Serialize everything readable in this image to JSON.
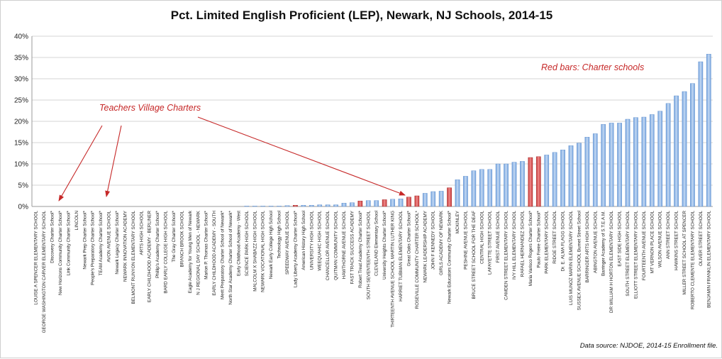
{
  "chart_data": {
    "type": "bar",
    "title": "Pct. Limited English Proficient (LEP), Newark, NJ Schools, 2014-15",
    "xlabel": "",
    "ylabel": "",
    "ylim": [
      0,
      0.4
    ],
    "y_ticks": [
      "0%",
      "5%",
      "10%",
      "15%",
      "20%",
      "25%",
      "30%",
      "35%",
      "40%"
    ],
    "grid": true,
    "legend": "none",
    "colors": {
      "district": "#8fb4e3",
      "charter": "#d84b4b"
    },
    "categories": [
      "LOUISE A SPENCER ELEMENTARY SCHOOL",
      "GEORGE WASHINGTON CARVER ELEMENTARY SCHOOL",
      "Discovery Charter School*",
      "New Horizons Community Charter School*",
      "Link Community Charter School*",
      "LINCOLN",
      "Newark Prep Charter School*",
      "People's Preparatory Charter School*",
      "TEAM Academy Charter School*",
      "AVON AVENUE SCHOOL",
      "Newark Legacy Charter School*",
      "NEWARK INNOVATION ACADEMY",
      "BELMONT RUNYON ELEMENTARY SCHOOL",
      "ARTS HIGH SCHOOL",
      "EARLY CHILDHOOD ACADEMY - BERLINER",
      "Phillip's Academy Charter School*",
      "BARD EARLY COLLEGE HIGH SCHOOL",
      "The Gray Charter School*",
      "BRANCH BROOK SCHOOL",
      "Eagle Academy for Young Men of Newark",
      "N J REGIONAL DAY SCHOOL - NEWARK",
      "Marion P. Thomas Charter School*",
      "EARLY CHILDHOOD ACADEMY - SOUTH",
      "Merit Preparatory Charter School of Newark*",
      "North Star Academy Charter School of Newark*",
      "Early Childhood Academy - West",
      "SCIENCE PARK HIGH SCHOOL",
      "MALCOLM X SHABAZZ HIGH SCHOOL",
      "NEWARK VOCATIONAL HIGH SCHOOL",
      "Newark Early College High School",
      "Technology High School",
      "SPEEDWAY AVENUE SCHOOL",
      "Lady Liberty Academy Charter School*",
      "American History High School",
      "UNIVERSITY HIGH SCHOOL",
      "WEEQUAHIC HIGH SCHOOL",
      "CHANCELLOR AVENUE SCHOOL",
      "QUITMAN COMMUNITY SCHOOL",
      "HAWTHORNE AVENUE SCHOOL",
      "FAST TRACK SUCCESS ACADEMY",
      "Robert Treat Academy Charter School*",
      "SOUTH SEVENTEENTH STREET SCHOOL",
      "CLEVELAND Elementary School",
      "University Heights Charter School*",
      "THIRTEENTH AVENUE SCHOOL MARTIN LUTHER KING",
      "HARRIET TUBMAN ELEMENTARY SCHOOL",
      "Great Oaks Charter School*",
      "ROSEVILLE COMMUNITY CHARTER SCHOOL*",
      "NEWARK LEADERSHIP ACADEMY",
      "JOHN F KENNEDY SCHOOL",
      "GIRLS ACADEMY OF NEWARK",
      "Newark Educators Community Charter School*",
      "MCKINLEY",
      "PESHINE AVENUE SCHOOL",
      "BRUCE STREET SCHOOL FOR THE DEAF",
      "CENTRAL HIGH SCHOOL",
      "LAFAYETTE STREET SCHOOL",
      "FIRST AVENUE SCHOOL",
      "CAMDEN STREET ELEMENTARY SCHOOL",
      "IVY HILL ELEMENTARY SCHOOL",
      "RAFAEL HERNANDEZ SCHOOL",
      "Maria Varisco Rogers Charter School*",
      "Paulo Freire Charter School*",
      "PARK ELEMENTARY SCHOOL",
      "RIDGE STREET SCHOOL",
      "Dr. E. ALMA FLAGG SCHOOL",
      "LUIS MUNOZ MARIN ELEMENTARY SCHOOL",
      "SUSSEX AVENUE SCHOOL Burnet Street School",
      "BARRINGER ARTS HIGH SCHOOL",
      "ABINGTON AVENUE SCHOOL",
      "Barringer Academy of S.T.E.A.M.",
      "DR WILLIAM H HORTON ELEMENTARY SCHOOL",
      "EAST SIDE HIGH SCHOOL",
      "SOUTH STREET ELEMENTARY SCHOOL",
      "ELLIOTT STREET ELEMENTARY SCHOOL",
      "FOURTEENTH AVENUE SCHOOL",
      "MT VERNON PLACE SCHOOL",
      "WILSON AVENUE SCHOOL",
      "ANN STREET SCHOOL",
      "HAWKINS STREET SCHOOL",
      "MILLER STREET SCHOOL AT SPENCER",
      "ROBERTO CLEMENTE ELEMENTARY SCHOOL",
      "OLIVER STREET SCHOOL",
      "BENJAMIN FRANKLIN ELEMENTARY SCHOOL"
    ],
    "values": [
      0.0,
      0.0,
      0.0,
      0.0,
      0.0,
      0.0,
      0.0,
      0.0,
      0.0,
      0.0,
      0.0,
      0.0,
      0.0,
      0.0,
      0.0,
      0.0,
      0.0,
      0.0,
      0.0,
      0.0,
      0.0,
      0.0,
      0.0,
      0.0,
      0.0,
      0.0,
      0.001,
      0.001,
      0.001,
      0.001,
      0.001,
      0.002,
      0.003,
      0.003,
      0.003,
      0.004,
      0.004,
      0.004,
      0.008,
      0.009,
      0.013,
      0.014,
      0.014,
      0.016,
      0.017,
      0.018,
      0.022,
      0.025,
      0.031,
      0.035,
      0.036,
      0.044,
      0.063,
      0.071,
      0.084,
      0.087,
      0.087,
      0.1,
      0.1,
      0.104,
      0.106,
      0.115,
      0.117,
      0.121,
      0.127,
      0.133,
      0.143,
      0.149,
      0.163,
      0.171,
      0.193,
      0.196,
      0.196,
      0.205,
      0.209,
      0.21,
      0.216,
      0.224,
      0.242,
      0.26,
      0.27,
      0.289,
      0.34,
      0.358
    ],
    "charter_flags": [
      0,
      0,
      1,
      1,
      1,
      0,
      1,
      1,
      1,
      0,
      1,
      0,
      0,
      0,
      0,
      1,
      0,
      1,
      0,
      0,
      0,
      1,
      0,
      1,
      1,
      0,
      0,
      0,
      0,
      0,
      0,
      0,
      1,
      0,
      0,
      0,
      0,
      0,
      0,
      0,
      1,
      0,
      0,
      1,
      0,
      0,
      1,
      1,
      0,
      0,
      0,
      1,
      0,
      0,
      0,
      0,
      0,
      0,
      0,
      0,
      0,
      1,
      1,
      0,
      0,
      0,
      0,
      0,
      0,
      0,
      0,
      0,
      0,
      0,
      0,
      0,
      0,
      0,
      0,
      0,
      0,
      0,
      0,
      0
    ],
    "annotations": {
      "charter_note": "Red bars: Charter schools",
      "tv_label": "Teachers Village Charters",
      "source": "Data source: NJDOE, 2014-15 Enrollment file."
    }
  }
}
